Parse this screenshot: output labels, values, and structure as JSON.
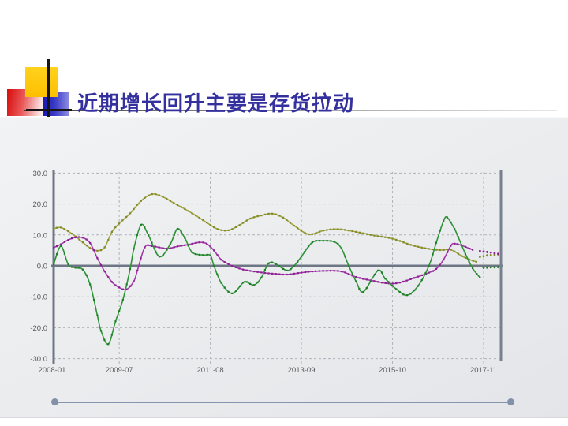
{
  "slide": {
    "title": "近期增长回升主要是存货拉动",
    "title_color": "#34319f",
    "decoration_colors": {
      "yellow": "#fdc500",
      "red": "#d91111",
      "blue": "#1f1fb8",
      "cross": "#141414"
    },
    "slider_color": "#8794ad"
  },
  "chart_data": {
    "type": "line",
    "title": "",
    "xlabel": "",
    "ylabel": "",
    "ylim": [
      -30,
      30
    ],
    "grid": true,
    "legend": "none",
    "y_tick_values": [
      30,
      20,
      10,
      0,
      -10,
      -20,
      -30
    ],
    "y_tick_labels": [
      "30.0",
      "20.0",
      "10.0",
      "0.0",
      "-10.0",
      "-20.0",
      "-30.0"
    ],
    "x_tick_labels": [
      "2008-01",
      "2009-07",
      "2011-08",
      "2013-09",
      "2015-10",
      "2017-11"
    ],
    "x_tick_months": [
      0,
      18,
      43,
      68,
      93,
      118
    ],
    "x_range": [
      "2008-01",
      "2018-04"
    ],
    "axis_color": "#6e7686",
    "grid_color": "#b0b3b7",
    "label_color": "#58595b",
    "note": "dotted tail points after the solid line end are forecast-style dotted segments",
    "series": [
      {
        "name": "olive-series",
        "color": "#a0a53c",
        "marker_color": "#83882b",
        "points": [
          [
            "2008-01",
            12.0
          ],
          [
            "2008-03",
            12.4
          ],
          [
            "2008-06",
            10.4
          ],
          [
            "2008-09",
            7.6
          ],
          [
            "2008-11",
            5.8
          ],
          [
            "2009-01",
            4.9
          ],
          [
            "2009-03",
            6.0
          ],
          [
            "2009-05",
            11.0
          ],
          [
            "2009-07",
            13.7
          ],
          [
            "2009-10",
            17.0
          ],
          [
            "2010-01",
            21.0
          ],
          [
            "2010-04",
            23.2
          ],
          [
            "2010-07",
            22.3
          ],
          [
            "2010-10",
            20.3
          ],
          [
            "2011-01",
            18.4
          ],
          [
            "2011-04",
            16.3
          ],
          [
            "2011-07",
            14.0
          ],
          [
            "2011-10",
            11.9
          ],
          [
            "2012-01",
            11.5
          ],
          [
            "2012-04",
            13.2
          ],
          [
            "2012-07",
            15.3
          ],
          [
            "2012-10",
            16.3
          ],
          [
            "2013-01",
            16.9
          ],
          [
            "2013-04",
            15.6
          ],
          [
            "2013-07",
            13.0
          ],
          [
            "2013-11",
            10.2
          ],
          [
            "2014-03",
            11.4
          ],
          [
            "2014-07",
            11.9
          ],
          [
            "2014-12",
            11.0
          ],
          [
            "2015-05",
            9.8
          ],
          [
            "2015-10",
            8.8
          ],
          [
            "2016-03",
            6.8
          ],
          [
            "2016-07",
            5.7
          ],
          [
            "2016-11",
            5.1
          ],
          [
            "2017-02",
            5.2
          ],
          [
            "2017-05",
            3.2
          ],
          [
            "2017-07",
            2.1
          ],
          [
            "2017-09",
            1.3
          ]
        ],
        "forecast_points": [
          [
            "2017-10",
            2.9
          ],
          [
            "2017-12",
            3.4
          ],
          [
            "2018-03",
            3.7
          ]
        ]
      },
      {
        "name": "purple-series",
        "color": "#a438aa",
        "marker_color": "#8a1f90",
        "points": [
          [
            "2008-01",
            5.9
          ],
          [
            "2008-03",
            7.0
          ],
          [
            "2008-05",
            8.4
          ],
          [
            "2008-07",
            9.2
          ],
          [
            "2008-09",
            9.1
          ],
          [
            "2008-11",
            7.4
          ],
          [
            "2009-01",
            2.5
          ],
          [
            "2009-03",
            -1.8
          ],
          [
            "2009-05",
            -5.2
          ],
          [
            "2009-07",
            -7.0
          ],
          [
            "2009-09",
            -7.6
          ],
          [
            "2009-11",
            -5.0
          ],
          [
            "2009-12",
            -1.5
          ],
          [
            "2010-02",
            6.0
          ],
          [
            "2010-04",
            6.4
          ],
          [
            "2010-08",
            5.6
          ],
          [
            "2010-11",
            6.3
          ],
          [
            "2011-02",
            6.9
          ],
          [
            "2011-05",
            7.6
          ],
          [
            "2011-07",
            7.2
          ],
          [
            "2011-09",
            5.0
          ],
          [
            "2011-11",
            2.0
          ],
          [
            "2012-02",
            0.0
          ],
          [
            "2012-05",
            -1.2
          ],
          [
            "2012-08",
            -1.8
          ],
          [
            "2012-11",
            -2.3
          ],
          [
            "2013-02",
            -2.6
          ],
          [
            "2013-05",
            -2.8
          ],
          [
            "2013-09",
            -2.2
          ],
          [
            "2013-12",
            -1.8
          ],
          [
            "2014-04",
            -1.6
          ],
          [
            "2014-08",
            -1.8
          ],
          [
            "2014-12",
            -3.6
          ],
          [
            "2015-04",
            -4.7
          ],
          [
            "2015-09",
            -5.7
          ],
          [
            "2015-12",
            -5.4
          ],
          [
            "2016-04",
            -3.9
          ],
          [
            "2016-08",
            -2.2
          ],
          [
            "2016-10",
            -1.0
          ],
          [
            "2016-12",
            2.0
          ],
          [
            "2017-02",
            6.5
          ],
          [
            "2017-03",
            7.2
          ],
          [
            "2017-05",
            6.6
          ],
          [
            "2017-08",
            5.2
          ]
        ],
        "forecast_points": [
          [
            "2017-10",
            4.8
          ],
          [
            "2017-12",
            4.5
          ],
          [
            "2018-03",
            3.9
          ]
        ]
      },
      {
        "name": "green-series",
        "color": "#2f9338",
        "marker_color": "#1e7d27",
        "points": [
          [
            "2008-01",
            0.4
          ],
          [
            "2008-03",
            6.4
          ],
          [
            "2008-05",
            0.5
          ],
          [
            "2008-07",
            -0.6
          ],
          [
            "2008-09",
            -1.2
          ],
          [
            "2008-11",
            -6.0
          ],
          [
            "2009-01",
            -16.0
          ],
          [
            "2009-02",
            -21.0
          ],
          [
            "2009-04",
            -25.3
          ],
          [
            "2009-06",
            -17.9
          ],
          [
            "2009-08",
            -11.0
          ],
          [
            "2009-10",
            -1.0
          ],
          [
            "2009-11",
            5.5
          ],
          [
            "2010-01",
            13.3
          ],
          [
            "2010-03",
            10.0
          ],
          [
            "2010-06",
            3.0
          ],
          [
            "2010-09",
            7.0
          ],
          [
            "2010-11",
            12.0
          ],
          [
            "2011-01",
            9.0
          ],
          [
            "2011-03",
            4.4
          ],
          [
            "2011-06",
            3.5
          ],
          [
            "2011-08",
            3.4
          ],
          [
            "2011-09",
            0.0
          ],
          [
            "2011-11",
            -5.5
          ],
          [
            "2012-02",
            -8.9
          ],
          [
            "2012-05",
            -5.4
          ],
          [
            "2012-06",
            -5.2
          ],
          [
            "2012-08",
            -6.2
          ],
          [
            "2012-10",
            -3.8
          ],
          [
            "2012-12",
            0.8
          ],
          [
            "2013-02",
            0.6
          ],
          [
            "2013-05",
            -1.5
          ],
          [
            "2013-07",
            0.0
          ],
          [
            "2013-09",
            3.0
          ],
          [
            "2013-12",
            7.6
          ],
          [
            "2014-03",
            8.1
          ],
          [
            "2014-06",
            7.8
          ],
          [
            "2014-08",
            5.6
          ],
          [
            "2014-10",
            0.0
          ],
          [
            "2014-12",
            -5.0
          ],
          [
            "2015-02",
            -8.4
          ],
          [
            "2015-06",
            -1.5
          ],
          [
            "2015-08",
            -4.1
          ],
          [
            "2015-11",
            -7.5
          ],
          [
            "2016-02",
            -9.5
          ],
          [
            "2016-05",
            -6.5
          ],
          [
            "2016-08",
            0.0
          ],
          [
            "2016-10",
            7.5
          ],
          [
            "2016-12",
            14.5
          ],
          [
            "2017-01",
            15.7
          ],
          [
            "2017-03",
            12.0
          ],
          [
            "2017-04",
            9.4
          ],
          [
            "2017-06",
            3.9
          ],
          [
            "2017-08",
            -0.8
          ],
          [
            "2017-10",
            -3.8
          ]
        ],
        "forecast_points": [
          [
            "2017-11",
            -0.6
          ],
          [
            "2018-03",
            -0.4
          ]
        ]
      }
    ]
  }
}
